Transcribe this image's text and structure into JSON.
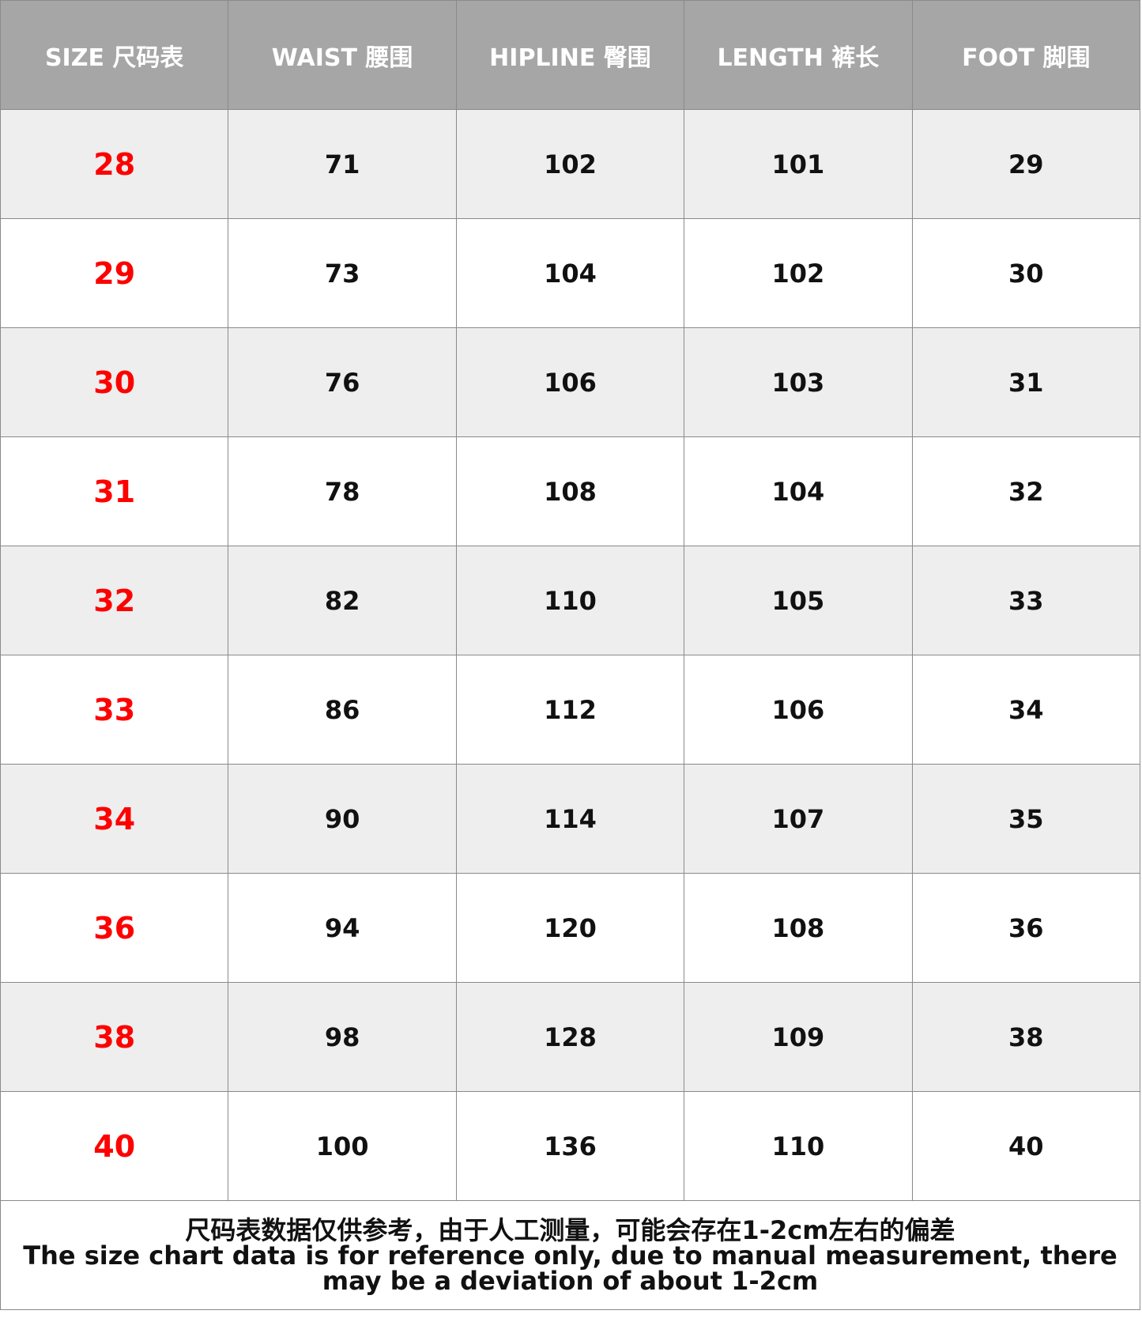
{
  "headers": [
    "SIZE 尺码表",
    "WAIST 腰围",
    "HIPLINE 臀围",
    "LENGTH 裤长",
    "FOOT 脚围"
  ],
  "rows": [
    [
      "28",
      "71",
      "102",
      "101",
      "29"
    ],
    [
      "29",
      "73",
      "104",
      "102",
      "30"
    ],
    [
      "30",
      "76",
      "106",
      "103",
      "31"
    ],
    [
      "31",
      "78",
      "108",
      "104",
      "32"
    ],
    [
      "32",
      "82",
      "110",
      "105",
      "33"
    ],
    [
      "33",
      "86",
      "112",
      "106",
      "34"
    ],
    [
      "34",
      "90",
      "114",
      "107",
      "35"
    ],
    [
      "36",
      "94",
      "120",
      "108",
      "36"
    ],
    [
      "38",
      "98",
      "128",
      "109",
      "38"
    ],
    [
      "40",
      "100",
      "136",
      "110",
      "40"
    ]
  ],
  "footer": {
    "note_cn": "尺码表数据仅供参考，由于人工测量，可能会存在1-2cm左右的偏差",
    "note_en": "The size chart data is for reference only, due to manual measurement, there may be a deviation of about 1-2cm"
  },
  "colors": {
    "header_bg": "#a6a6a6",
    "size_text": "#ff0000",
    "alt_row": "#eeeeee"
  }
}
